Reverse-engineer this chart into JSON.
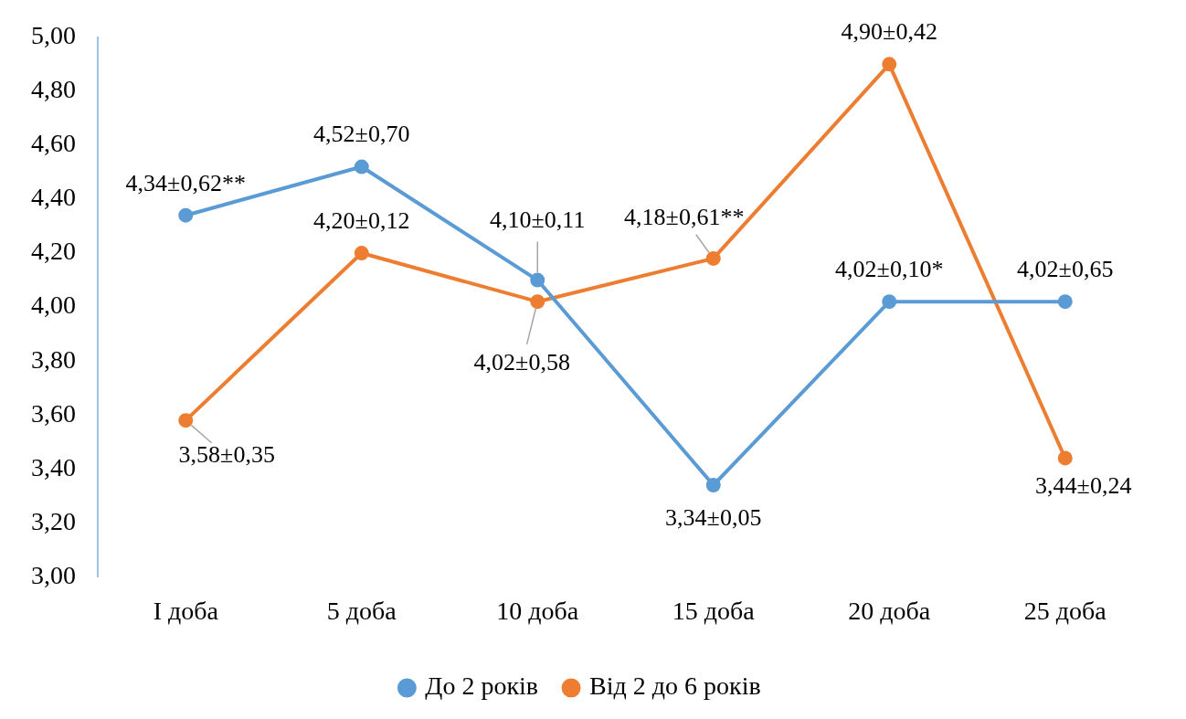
{
  "chart_data": {
    "type": "line",
    "categories": [
      "I доба",
      "5 доба",
      "10 доба",
      "15 доба",
      "20 доба",
      "25 доба"
    ],
    "series": [
      {
        "name": "До 2 років",
        "color": "#5b9bd5",
        "values": [
          4.34,
          4.52,
          4.1,
          3.34,
          4.02,
          4.02
        ],
        "value_labels": [
          "4,34±0,62**",
          "4,52±0,70",
          "4,10±0,11",
          "3,34±0,05",
          "4,02±0,10*",
          "4,02±0,65"
        ]
      },
      {
        "name": "Від 2 до 6 років",
        "color": "#ed7d31",
        "values": [
          3.58,
          4.2,
          4.02,
          4.18,
          4.9,
          3.44
        ],
        "value_labels": [
          "3,58±0,35",
          "4,20±0,12",
          "4,02±0,58",
          "4,18±0,61**",
          "4,90±0,42",
          "3,44±0,24"
        ]
      }
    ],
    "ylim": [
      3.0,
      5.0
    ],
    "yticks": [
      {
        "value": 3.0,
        "label": "3,00"
      },
      {
        "value": 3.2,
        "label": "3,20"
      },
      {
        "value": 3.4,
        "label": "3,40"
      },
      {
        "value": 3.6,
        "label": "3,60"
      },
      {
        "value": 3.8,
        "label": "3,80"
      },
      {
        "value": 4.0,
        "label": "4,00"
      },
      {
        "value": 4.2,
        "label": "4,20"
      },
      {
        "value": 4.4,
        "label": "4,40"
      },
      {
        "value": 4.6,
        "label": "4,60"
      },
      {
        "value": 4.8,
        "label": "4,80"
      },
      {
        "value": 5.0,
        "label": "5,00"
      }
    ],
    "grid": false,
    "legend": "bottom",
    "marker": "circle",
    "line_style": "solid"
  }
}
